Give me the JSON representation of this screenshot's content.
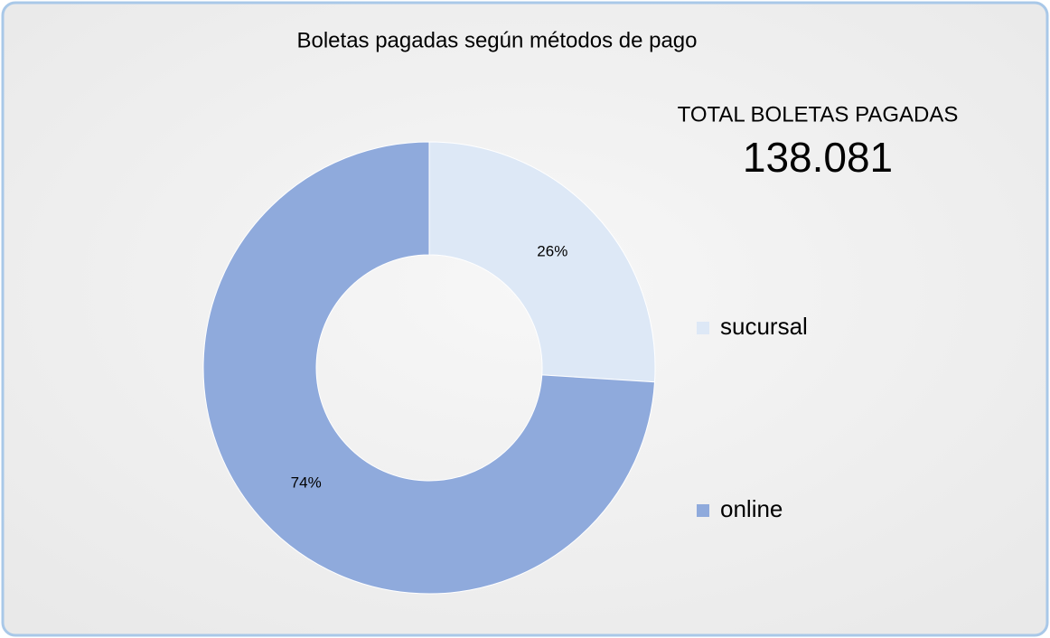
{
  "chart_data": {
    "type": "donut",
    "title": "Boletas pagadas según métodos de pago",
    "categories": [
      "sucursal",
      "online"
    ],
    "values": [
      26,
      74
    ],
    "value_labels": [
      "26%",
      "74%"
    ],
    "colors": [
      "#dde8f6",
      "#8faadc"
    ],
    "annotations": [
      "TOTAL BOLETAS PAGADAS",
      "138.081"
    ]
  }
}
